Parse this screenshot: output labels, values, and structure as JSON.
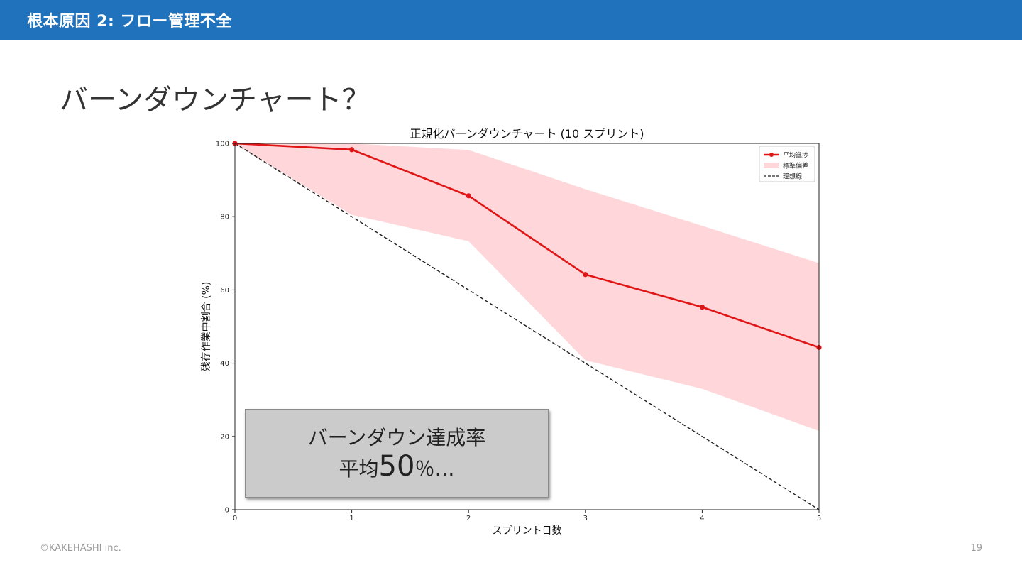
{
  "header": {
    "title": "根本原因 2: フロー管理不全"
  },
  "slide": {
    "heading": "バーンダウンチャート？"
  },
  "callout": {
    "line1": "バーンダウン達成率",
    "line2_prefix": "平均",
    "line2_value": "50",
    "line2_suffix": "％…"
  },
  "footer": {
    "copyright": "©KAKEHASHI inc.",
    "page_number": "19"
  },
  "colors": {
    "header_bg": "#1f72bb",
    "series": "#e01616",
    "band": "#ffd6d9",
    "ideal": "#222222"
  },
  "chart_data": {
    "type": "line",
    "title": "正規化バーンダウンチャート (10 スプリント)",
    "xlabel": "スプリント日数",
    "ylabel": "残存作業中割合 (%)",
    "xlim": [
      0,
      5
    ],
    "ylim": [
      0,
      100
    ],
    "xticks": [
      "0",
      "1",
      "2",
      "3",
      "4",
      "5"
    ],
    "yticks": [
      "0",
      "20",
      "40",
      "60",
      "80",
      "100"
    ],
    "grid": false,
    "legend_position": "top-right",
    "x": [
      0,
      1,
      2,
      3,
      4,
      5
    ],
    "series": [
      {
        "name": "平均進捗",
        "style": "solid-marker",
        "values": [
          100,
          98.3,
          85.7,
          64.2,
          55.3,
          44.3
        ]
      },
      {
        "name": "標準偏差",
        "style": "band",
        "upper": [
          100,
          100,
          98.2,
          87.5,
          77.5,
          67.3
        ],
        "lower": [
          100,
          80.5,
          73.3,
          40.8,
          33.0,
          21.5
        ]
      },
      {
        "name": "理想線",
        "style": "dashed",
        "values": [
          100,
          80,
          60,
          40,
          20,
          0
        ]
      }
    ]
  }
}
